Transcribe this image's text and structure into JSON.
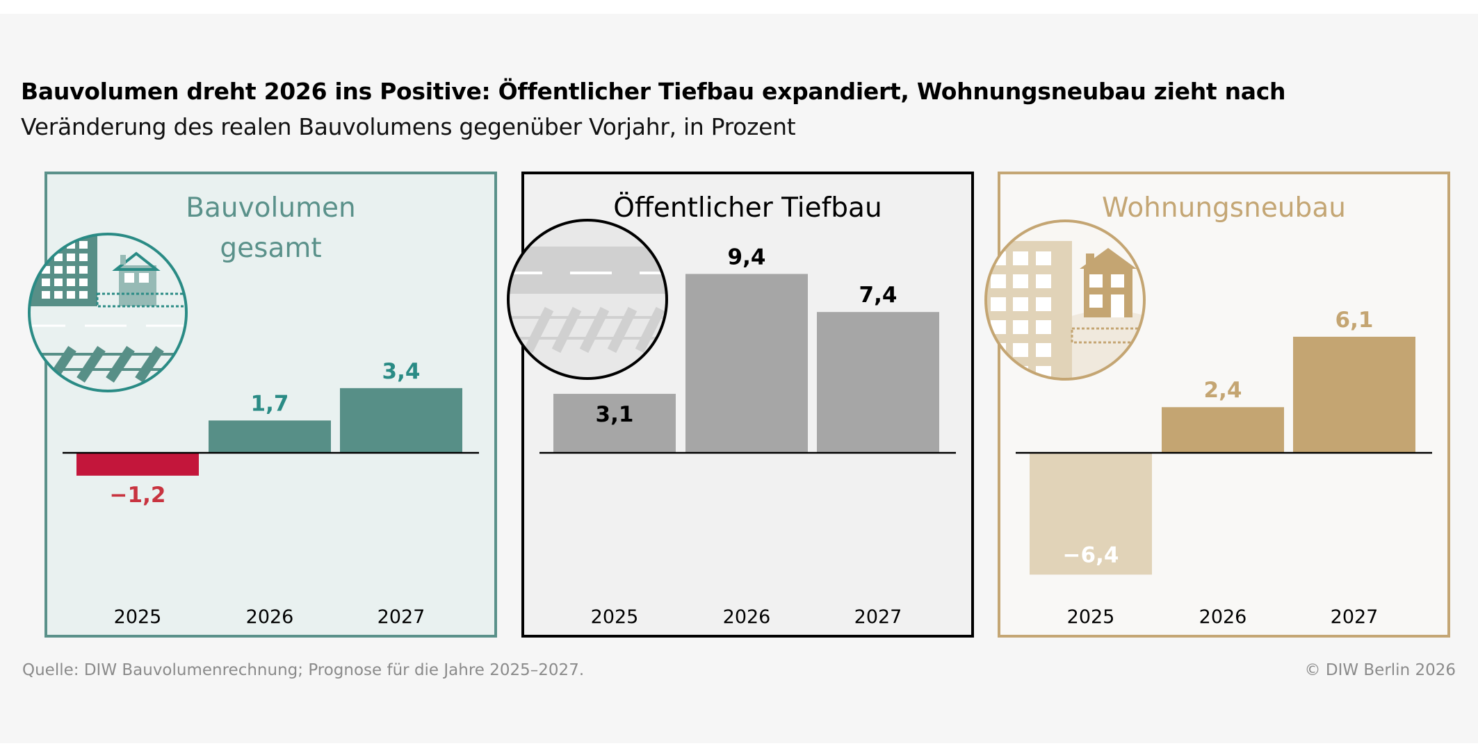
{
  "header": {
    "title": "Bauvolumen dreht 2026 ins Positive: Öffentlicher Tiefbau expandiert, Wohnungsneubau zieht nach",
    "subtitle": "Veränderung des realen Bauvolumens gegenüber Vorjahr, in Prozent"
  },
  "footer": {
    "source": "Quelle: DIW Bauvolumenrechnung; Prognose für die Jahre 2025–2027.",
    "copyright": "© DIW Berlin 2026"
  },
  "chart_data": [
    {
      "type": "bar",
      "title_lines": [
        "Bauvolumen",
        "gesamt"
      ],
      "icon": "buildings-road-rail-illustration",
      "categories": [
        "2025",
        "2026",
        "2027"
      ],
      "values": [
        -1.2,
        1.7,
        3.4
      ],
      "labels": [
        "−1,2",
        "1,7",
        "3,4"
      ],
      "label_positions": [
        "below",
        "above",
        "above"
      ],
      "colors": {
        "border": "#5a918a",
        "background": "#e9f1f0",
        "title": "#5a918a",
        "bar": "#578f87",
        "negative_bar": "#c3163b",
        "label": "#2a8b85",
        "negative_label": "#c8333f"
      }
    },
    {
      "type": "bar",
      "title_lines": [
        "Öffentlicher Tiefbau"
      ],
      "icon": "road-rail-illustration",
      "categories": [
        "2025",
        "2026",
        "2027"
      ],
      "values": [
        3.1,
        9.4,
        7.4
      ],
      "labels": [
        "3,1",
        "9,4",
        "7,4"
      ],
      "label_positions": [
        "inside-top",
        "above",
        "above"
      ],
      "colors": {
        "border": "#000000",
        "background": "#f1f1f1",
        "title": "#000000",
        "bar": "#a6a6a6",
        "negative_bar": "#a6a6a6",
        "label": "#000000",
        "negative_label": "#000000"
      }
    },
    {
      "type": "bar",
      "title_lines": [
        "Wohnungsneubau"
      ],
      "icon": "apartment-house-illustration",
      "categories": [
        "2025",
        "2026",
        "2027"
      ],
      "values": [
        -6.4,
        2.4,
        6.1
      ],
      "labels": [
        "−6,4",
        "2,4",
        "6,1"
      ],
      "label_positions": [
        "inside-bottom",
        "above",
        "above"
      ],
      "colors": {
        "border": "#c4a674",
        "background": "#f9f8f6",
        "title": "#c4a674",
        "bar": "#c4a572",
        "negative_bar": "#e1d3b8",
        "label": "#c4a572",
        "negative_label": "#ffffff"
      }
    }
  ]
}
